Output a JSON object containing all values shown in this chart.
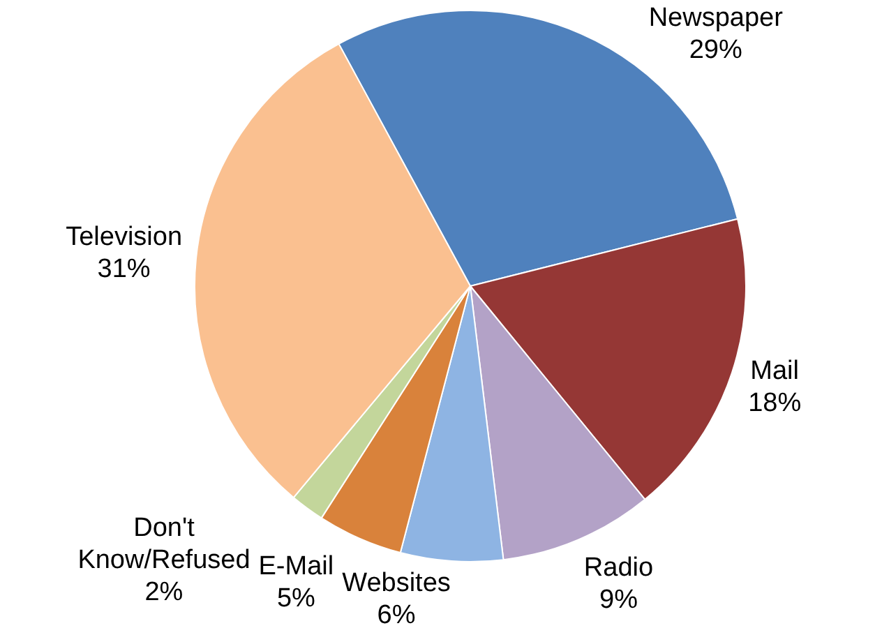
{
  "chart_data": {
    "type": "pie",
    "categories": [
      "Newspaper",
      "Mail",
      "Radio",
      "Websites",
      "E-Mail",
      "Don't Know/Refused",
      "Television"
    ],
    "values": [
      29,
      18,
      9,
      6,
      5,
      2,
      31
    ],
    "value_labels": [
      "29%",
      "18%",
      "9%",
      "6%",
      "5%",
      "2%",
      "31%"
    ],
    "colors": [
      "#4f81bd",
      "#953735",
      "#b3a2c7",
      "#8eb4e3",
      "#d9823b",
      "#c3d69b",
      "#fac090"
    ],
    "legend": false
  }
}
